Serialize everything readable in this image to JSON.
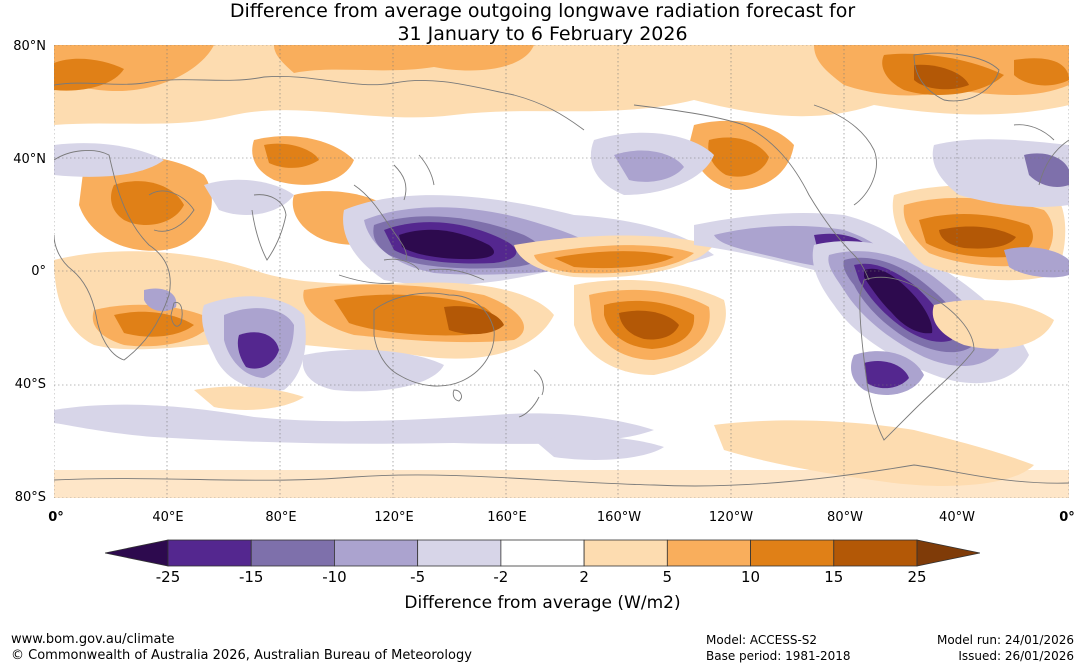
{
  "title": {
    "line1": "Difference from average outgoing longwave radiation forecast for",
    "line2": "31 January to 6 February 2026"
  },
  "map": {
    "lat_labels": [
      "80°N",
      "40°N",
      "0°",
      "40°S",
      "80°S"
    ],
    "lon_labels": [
      "0°",
      "40°E",
      "80°E",
      "120°E",
      "160°E",
      "160°W",
      "120°W",
      "80°W",
      "40°W",
      "0°"
    ]
  },
  "colorbar": {
    "title": "Difference from average (W/m2)",
    "ticks": [
      "-25",
      "-15",
      "-10",
      "-5",
      "-2",
      "2",
      "5",
      "10",
      "15",
      "25"
    ],
    "colors": [
      "#2d0a4e",
      "#54278f",
      "#7e70ab",
      "#aba3cf",
      "#d7d5e8",
      "#ffffff",
      "#fddcb0",
      "#f9ae5c",
      "#e08017",
      "#b35806",
      "#7f3b08"
    ]
  },
  "footer": {
    "website": "www.bom.gov.au/climate",
    "copyright": "© Commonwealth of Australia 2026, Australian Bureau of Meteorology",
    "model": "Model: ACCESS-S2",
    "base_period": "Base period: 1981-2018",
    "model_run": "Model run: 24/01/2026",
    "issued": "Issued: 26/01/2026"
  }
}
